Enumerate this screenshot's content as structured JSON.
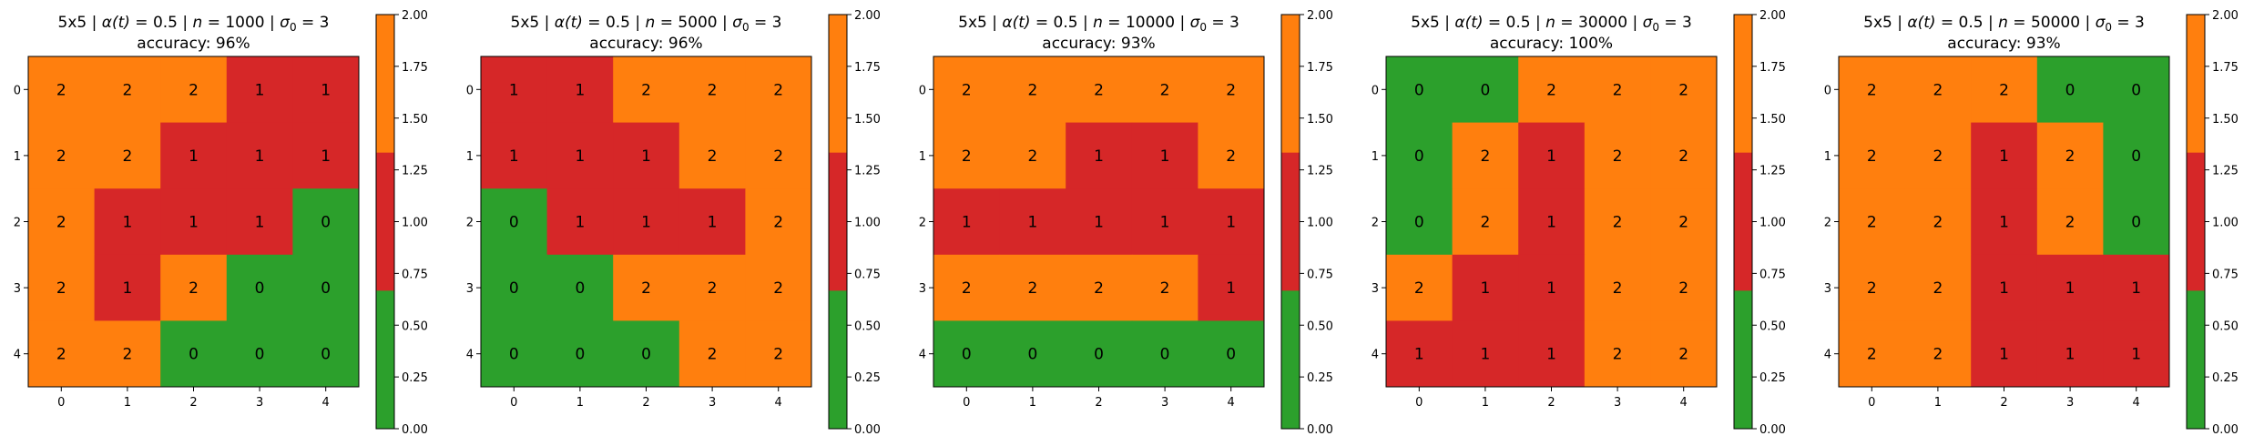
{
  "figure": {
    "background": "#ffffff"
  },
  "colors": {
    "0": "#2ca02c",
    "1": "#d62728",
    "2": "#ff7f0e"
  },
  "chart_data": [
    {
      "type": "heatmap",
      "title_parts": [
        "5x5 | ",
        "α(t)",
        " = 0.5 | ",
        "n",
        " = 1000 | ",
        "σ",
        "0",
        " = 3"
      ],
      "subtitle": "accuracy: 96%",
      "x_ticks": [
        "0",
        "1",
        "2",
        "3",
        "4"
      ],
      "y_ticks": [
        "0",
        "1",
        "2",
        "3",
        "4"
      ],
      "colorbar": {
        "range": [
          0,
          2
        ],
        "ticks": [
          "0.00",
          "0.25",
          "0.50",
          "0.75",
          "1.00",
          "1.25",
          "1.50",
          "1.75",
          "2.00"
        ]
      },
      "grid": [
        [
          2,
          2,
          2,
          1,
          1
        ],
        [
          2,
          2,
          1,
          1,
          1
        ],
        [
          2,
          1,
          1,
          1,
          0
        ],
        [
          2,
          1,
          2,
          0,
          0
        ],
        [
          2,
          2,
          0,
          0,
          0
        ]
      ]
    },
    {
      "type": "heatmap",
      "title_parts": [
        "5x5 | ",
        "α(t)",
        " = 0.5 | ",
        "n",
        " = 5000 | ",
        "σ",
        "0",
        " = 3"
      ],
      "subtitle": "accuracy: 96%",
      "x_ticks": [
        "0",
        "1",
        "2",
        "3",
        "4"
      ],
      "y_ticks": [
        "0",
        "1",
        "2",
        "3",
        "4"
      ],
      "colorbar": {
        "range": [
          0,
          2
        ],
        "ticks": [
          "0.00",
          "0.25",
          "0.50",
          "0.75",
          "1.00",
          "1.25",
          "1.50",
          "1.75",
          "2.00"
        ]
      },
      "grid": [
        [
          1,
          1,
          2,
          2,
          2
        ],
        [
          1,
          1,
          1,
          2,
          2
        ],
        [
          0,
          1,
          1,
          1,
          2
        ],
        [
          0,
          0,
          2,
          2,
          2
        ],
        [
          0,
          0,
          0,
          2,
          2
        ]
      ]
    },
    {
      "type": "heatmap",
      "title_parts": [
        "5x5 | ",
        "α(t)",
        " = 0.5 | ",
        "n",
        " = 10000 | ",
        "σ",
        "0",
        " = 3"
      ],
      "subtitle": "accuracy: 93%",
      "x_ticks": [
        "0",
        "1",
        "2",
        "3",
        "4"
      ],
      "y_ticks": [
        "0",
        "1",
        "2",
        "3",
        "4"
      ],
      "colorbar": {
        "range": [
          0,
          2
        ],
        "ticks": [
          "0.00",
          "0.25",
          "0.50",
          "0.75",
          "1.00",
          "1.25",
          "1.50",
          "1.75",
          "2.00"
        ]
      },
      "grid": [
        [
          2,
          2,
          2,
          2,
          2
        ],
        [
          2,
          2,
          1,
          1,
          2
        ],
        [
          1,
          1,
          1,
          1,
          1
        ],
        [
          2,
          2,
          2,
          2,
          1
        ],
        [
          0,
          0,
          0,
          0,
          0
        ]
      ]
    },
    {
      "type": "heatmap",
      "title_parts": [
        "5x5 | ",
        "α(t)",
        " = 0.5 | ",
        "n",
        " = 30000 | ",
        "σ",
        "0",
        " = 3"
      ],
      "subtitle": "accuracy: 100%",
      "x_ticks": [
        "0",
        "1",
        "2",
        "3",
        "4"
      ],
      "y_ticks": [
        "0",
        "1",
        "2",
        "3",
        "4"
      ],
      "colorbar": {
        "range": [
          0,
          2
        ],
        "ticks": [
          "0.00",
          "0.25",
          "0.50",
          "0.75",
          "1.00",
          "1.25",
          "1.50",
          "1.75",
          "2.00"
        ]
      },
      "grid": [
        [
          0,
          0,
          2,
          2,
          2
        ],
        [
          0,
          2,
          1,
          2,
          2
        ],
        [
          0,
          2,
          1,
          2,
          2
        ],
        [
          2,
          1,
          1,
          2,
          2
        ],
        [
          1,
          1,
          1,
          2,
          2
        ]
      ]
    },
    {
      "type": "heatmap",
      "title_parts": [
        "5x5 | ",
        "α(t)",
        " = 0.5 | ",
        "n",
        " = 50000 | ",
        "σ",
        "0",
        " = 3"
      ],
      "subtitle": "accuracy: 93%",
      "x_ticks": [
        "0",
        "1",
        "2",
        "3",
        "4"
      ],
      "y_ticks": [
        "0",
        "1",
        "2",
        "3",
        "4"
      ],
      "colorbar": {
        "range": [
          0,
          2
        ],
        "ticks": [
          "0.00",
          "0.25",
          "0.50",
          "0.75",
          "1.00",
          "1.25",
          "1.50",
          "1.75",
          "2.00"
        ]
      },
      "grid": [
        [
          2,
          2,
          2,
          0,
          0
        ],
        [
          2,
          2,
          1,
          2,
          0
        ],
        [
          2,
          2,
          1,
          2,
          0
        ],
        [
          2,
          2,
          1,
          1,
          1
        ],
        [
          2,
          2,
          1,
          1,
          1
        ]
      ]
    }
  ]
}
